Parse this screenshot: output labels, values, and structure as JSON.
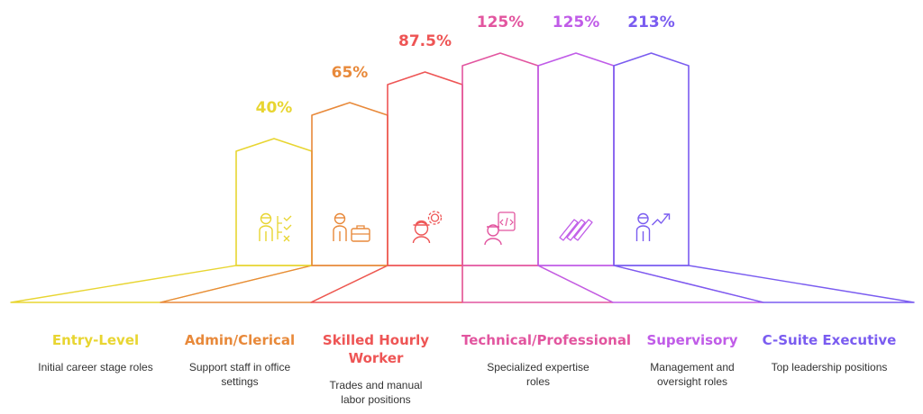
{
  "diagram": {
    "levels": [
      {
        "percent": "40%",
        "title": "Entry-Level",
        "description": "Initial career stage roles",
        "color": "#e8d531",
        "icon": "worker-checklist-icon"
      },
      {
        "percent": "65%",
        "title": "Admin/Clerical",
        "description": "Support staff in office settings",
        "color": "#e8893a",
        "icon": "worker-briefcase-icon"
      },
      {
        "percent": "87.5%",
        "title": "Skilled Hourly Worker",
        "description": "Trades and manual labor positions",
        "color": "#ee5555",
        "icon": "hardhat-gear-icon"
      },
      {
        "percent": "125%",
        "title": "Technical/Professional",
        "description": "Specialized expertise roles",
        "color": "#e2559f",
        "icon": "engineer-code-icon"
      },
      {
        "percent": "125%",
        "title": "Supervisory",
        "description": "Management and oversight roles",
        "color": "#c05ce8",
        "icon": "pencils-icon"
      },
      {
        "percent": "213%",
        "title": "C-Suite Executive",
        "description": "Top leadership positions",
        "color": "#7a5cf0",
        "icon": "executive-growth-icon"
      }
    ]
  }
}
